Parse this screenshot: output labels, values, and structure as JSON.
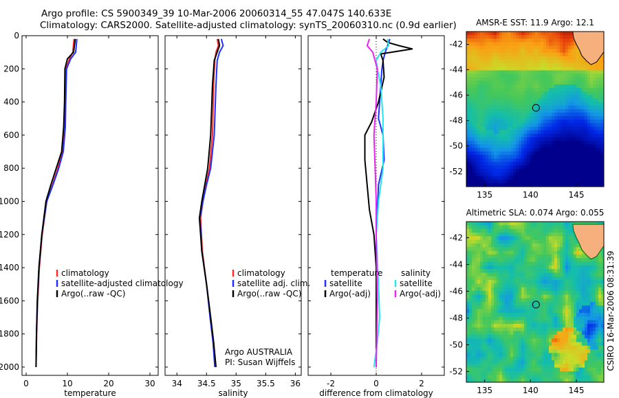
{
  "header": {
    "title_line1": "Argo profile: CS 5900349_39 10-Mar-2006 20060314_55 47.047S 140.633E",
    "title_line2": "Climatology: CARS2000. Satellite-adjusted climatology: synTS_20060310.nc (0.9d earlier)"
  },
  "chart_data": [
    {
      "type": "line",
      "id": "temperature",
      "xlabel": "temperature",
      "xlim": [
        -1,
        32
      ],
      "ylim": [
        0,
        2050
      ],
      "y_reversed": true,
      "xticks": [
        0,
        10,
        20,
        30
      ],
      "yticks": [
        0,
        200,
        400,
        600,
        800,
        1000,
        1200,
        1400,
        1600,
        1800,
        2000
      ],
      "legend": {
        "position": "lower-right",
        "entries": [
          "climatology",
          "satellite-adjusted climatology",
          "Argo(..raw -QC)"
        ]
      },
      "series": [
        {
          "name": "climatology",
          "color": "#ff2a2a",
          "x": [
            11.6,
            11.3,
            10.5,
            9.6,
            9.5,
            9.3,
            8.8,
            7.7,
            6.4,
            5.0,
            3.9,
            3.2,
            2.8,
            2.55,
            2.4
          ],
          "y": [
            20,
            100,
            140,
            200,
            400,
            550,
            700,
            800,
            900,
            1000,
            1200,
            1400,
            1600,
            1800,
            2000
          ]
        },
        {
          "name": "satellite-adjusted climatology",
          "color": "#1e2fff",
          "x": [
            12.3,
            12.0,
            10.8,
            9.8,
            9.6,
            9.5,
            9.0,
            7.9,
            6.5,
            5.0,
            3.8,
            3.1,
            2.75,
            2.5,
            2.4
          ],
          "y": [
            20,
            100,
            140,
            200,
            400,
            550,
            700,
            800,
            900,
            1000,
            1200,
            1400,
            1600,
            1800,
            2000
          ]
        },
        {
          "name": "Argo(..raw -QC)",
          "color": "#000000",
          "x": [
            11.9,
            11.5,
            10.0,
            9.4,
            9.3,
            9.1,
            8.6,
            7.3,
            6.0,
            4.8,
            3.8,
            3.1,
            2.7,
            2.5,
            2.4
          ],
          "y": [
            20,
            100,
            140,
            200,
            400,
            550,
            700,
            800,
            900,
            1000,
            1200,
            1400,
            1600,
            1800,
            2000
          ]
        }
      ]
    },
    {
      "type": "line",
      "id": "salinity",
      "xlabel": "salinity",
      "xlim": [
        33.8,
        36.1
      ],
      "ylim": [
        0,
        2050
      ],
      "y_reversed": true,
      "xticks": [
        34,
        34.5,
        35,
        35.5,
        36
      ],
      "xticklabels": [
        "34",
        "34.5",
        "35",
        "35.5",
        "36"
      ],
      "legend": {
        "position": "lower-right",
        "entries": [
          "climatology",
          "satellite adj. clim.",
          "Argo(..raw -QC)"
        ]
      },
      "annotation": {
        "line1": "Argo AUSTRALIA",
        "line2": "PI: Susan Wijffels"
      },
      "series": [
        {
          "name": "climatology",
          "color": "#ff2a2a",
          "x": [
            34.68,
            34.7,
            34.66,
            34.64,
            34.62,
            34.6,
            34.55,
            34.49,
            34.44,
            34.4,
            34.43,
            34.5,
            34.57,
            34.62,
            34.66
          ],
          "y": [
            20,
            60,
            100,
            150,
            300,
            600,
            800,
            900,
            1000,
            1100,
            1300,
            1500,
            1700,
            1850,
            2000
          ]
        },
        {
          "name": "satellite adj. clim.",
          "color": "#1e2fff",
          "x": [
            34.75,
            34.78,
            34.72,
            34.68,
            34.66,
            34.63,
            34.57,
            34.5,
            34.44,
            34.39,
            34.42,
            34.5,
            34.56,
            34.61,
            34.64
          ],
          "y": [
            20,
            60,
            100,
            150,
            300,
            600,
            800,
            900,
            1000,
            1100,
            1300,
            1500,
            1700,
            1850,
            2000
          ]
        },
        {
          "name": "Argo(..raw -QC)",
          "color": "#000000",
          "x": [
            34.7,
            34.72,
            34.68,
            34.63,
            34.6,
            34.57,
            34.52,
            34.47,
            34.42,
            34.38,
            34.42,
            34.5,
            34.57,
            34.62,
            34.66
          ],
          "y": [
            20,
            60,
            100,
            150,
            300,
            600,
            800,
            900,
            1000,
            1100,
            1300,
            1500,
            1700,
            1850,
            2000
          ]
        }
      ]
    },
    {
      "type": "line",
      "id": "difference",
      "xlabel": "difference from climatology",
      "xlim": [
        -3,
        3
      ],
      "ylim": [
        0,
        2050
      ],
      "y_reversed": true,
      "xticks": [
        -2,
        0,
        2
      ],
      "legend": {
        "position": "lower-right",
        "entries": [
          "temperature",
          "satellite",
          "Argo(-adj)",
          "salinity",
          "satellite",
          "Argo(-adj)"
        ]
      },
      "series": [
        {
          "name": "temperature satellite",
          "color": "#1e2fff",
          "x": [
            0.6,
            0.5,
            0.4,
            0.3,
            0.25,
            0.2,
            0.15,
            0.1,
            0.3,
            0.35,
            0.1,
            0.0,
            0.0,
            0.0
          ],
          "y": [
            20,
            60,
            100,
            150,
            200,
            300,
            400,
            500,
            600,
            750,
            900,
            1200,
            1600,
            2000
          ]
        },
        {
          "name": "temperature Argo(-adj)",
          "color": "#000000",
          "x": [
            0.3,
            0.5,
            1.0,
            1.6,
            0.2,
            0.3,
            0.35,
            0.1,
            -0.2,
            -0.5,
            -0.5,
            -0.4,
            -0.3,
            -0.1,
            0.0,
            0.0,
            0.0
          ],
          "y": [
            20,
            40,
            60,
            80,
            110,
            150,
            250,
            400,
            520,
            600,
            750,
            900,
            1050,
            1200,
            1400,
            1700,
            2000
          ]
        },
        {
          "name": "salinity satellite",
          "color": "#22e5ee",
          "x": [
            0.5,
            0.55,
            0.2,
            0.0,
            0.05,
            0.2,
            0.3,
            0.3,
            0.1,
            0.0,
            0.1,
            0.15,
            0.05,
            -0.1
          ],
          "y": [
            20,
            60,
            100,
            150,
            200,
            300,
            500,
            800,
            1000,
            1200,
            1500,
            1700,
            1850,
            2000
          ]
        },
        {
          "name": "salinity Argo(-adj)",
          "color": "#ee22ee",
          "x": [
            -0.3,
            -0.4,
            -0.15,
            0.05,
            0.0,
            -0.1,
            -0.05,
            0.0,
            0.0,
            0.05,
            0.0
          ],
          "y": [
            20,
            60,
            100,
            200,
            400,
            600,
            800,
            1000,
            1200,
            1600,
            2000
          ]
        }
      ]
    },
    {
      "type": "heatmap",
      "id": "sst",
      "title": "AMSR-E SST: 11.9 Argo: 12.1",
      "xlim": [
        133,
        148
      ],
      "ylim": [
        -53.2,
        -41
      ],
      "xticks": [
        135,
        140,
        145
      ],
      "yticks": [
        -42,
        -44,
        -46,
        -48,
        -50,
        -52
      ],
      "marker": {
        "lon": 140.6,
        "lat": -47.0
      }
    },
    {
      "type": "heatmap",
      "id": "sla",
      "title": "Altimetric SLA: 0.074 Argo: 0.055",
      "xlim": [
        133,
        148
      ],
      "ylim": [
        -52.8,
        -40.8
      ],
      "xticks": [
        135,
        140,
        145
      ],
      "yticks": [
        -42,
        -44,
        -46,
        -48,
        -50,
        -52
      ],
      "marker": {
        "lon": 140.6,
        "lat": -47.0
      }
    }
  ],
  "stamp": "CSIRO 16-Mar-2006 08:31:39"
}
